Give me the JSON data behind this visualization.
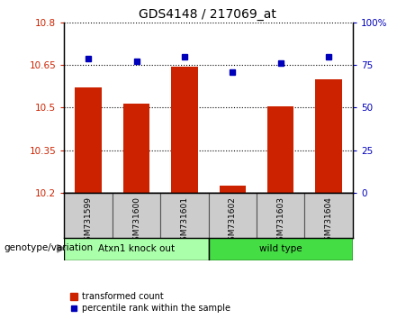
{
  "title": "GDS4148 / 217069_at",
  "categories": [
    "GSM731599",
    "GSM731600",
    "GSM731601",
    "GSM731602",
    "GSM731603",
    "GSM731604"
  ],
  "bar_values": [
    10.57,
    10.515,
    10.645,
    10.225,
    10.505,
    10.6
  ],
  "dot_values": [
    79,
    77,
    80,
    71,
    76,
    80
  ],
  "ymin": 10.2,
  "ymax": 10.8,
  "y2min": 0,
  "y2max": 100,
  "yticks": [
    10.2,
    10.35,
    10.5,
    10.65,
    10.8
  ],
  "ytick_labels": [
    "10.2",
    "10.35",
    "10.5",
    "10.65",
    "10.8"
  ],
  "y2ticks": [
    0,
    25,
    50,
    75,
    100
  ],
  "y2tick_labels": [
    "0",
    "25",
    "50",
    "75",
    "100%"
  ],
  "bar_color": "#cc2200",
  "dot_color": "#0000bb",
  "bar_width": 0.55,
  "group_labels": [
    "Atxn1 knock out",
    "wild type"
  ],
  "group_colors": [
    "#aaffaa",
    "#44dd44"
  ],
  "genotype_label": "genotype/variation",
  "legend_bar_label": "transformed count",
  "legend_dot_label": "percentile rank within the sample",
  "tick_color_left": "#cc2200",
  "tick_color_right": "#0000bb",
  "sample_bg_color": "#cccccc",
  "sample_border_color": "#555555"
}
